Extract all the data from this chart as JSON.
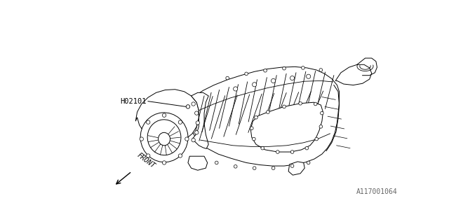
{
  "bg_color": "#ffffff",
  "line_color": "#000000",
  "label_h02101": "H02101",
  "label_front": "FRONT",
  "label_part_number": "A117001064",
  "fig_width": 6.4,
  "fig_height": 3.2,
  "dpi": 100
}
